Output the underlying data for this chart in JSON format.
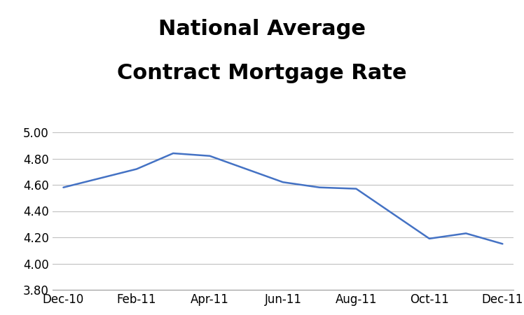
{
  "title_line1": "National Average",
  "title_line2": "Contract Mortgage Rate",
  "x_labels": [
    "Dec-10",
    "Feb-11",
    "Apr-11",
    "Jun-11",
    "Aug-11",
    "Oct-11",
    "Dec-11"
  ],
  "x_positions": [
    0,
    2,
    4,
    6,
    8,
    10,
    12
  ],
  "data_x": [
    0,
    2,
    3,
    4,
    6,
    7,
    8,
    10,
    11,
    12
  ],
  "data_y": [
    4.58,
    4.72,
    4.84,
    4.82,
    4.62,
    4.58,
    4.57,
    4.19,
    4.23,
    4.15
  ],
  "ylim": [
    3.8,
    5.0
  ],
  "yticks": [
    3.8,
    4.0,
    4.2,
    4.4,
    4.6,
    4.8,
    5.0
  ],
  "line_color": "#4472C4",
  "line_width": 1.8,
  "background_color": "#FFFFFF",
  "title_fontsize": 22,
  "tick_fontsize": 12,
  "grid_color": "#C0C0C0",
  "grid_linewidth": 0.8,
  "xlim": [
    -0.3,
    12.3
  ]
}
